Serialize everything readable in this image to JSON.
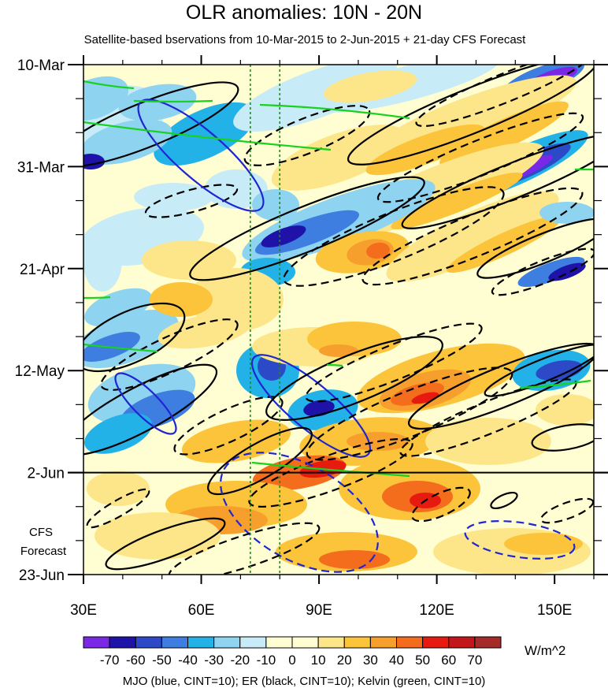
{
  "title": "OLR anomalies: 10N - 20N",
  "subtitle": "Satellite-based bservations from 10-Mar-2015 to 2-Jun-2015 + 21-day CFS Forecast",
  "forecast_label_1": "CFS",
  "forecast_label_2": "Forecast",
  "units": "W/m^2",
  "bottom_note": "MJO (blue, CINT=10); ER (black, CINT=10); Kelvin (green, CINT=10)",
  "colors": {
    "neg70": "#7a28e6",
    "neg60": "#1e12a8",
    "neg50": "#2c49c8",
    "neg40": "#3d7ee0",
    "neg30": "#23b2e8",
    "neg20": "#8ed3f0",
    "neg10": "#c8ecf7",
    "zero": "#fffed2",
    "pos10": "#fde68a",
    "pos20": "#fbc43a",
    "pos30": "#f79f2d",
    "pos40": "#f36d1d",
    "pos50": "#e71a10",
    "pos60": "#c2161a",
    "pos70": "#a52a2a",
    "pos80": "#ff6fc4",
    "mjo": "#1f26d0",
    "er": "#000000",
    "kelvin": "#19d11f",
    "ref": "#1e8a1e"
  },
  "chart_data": {
    "type": "heatmap",
    "title": "OLR anomalies: 10N - 20N",
    "x": {
      "range": [
        30,
        160
      ],
      "ticks": [
        30,
        60,
        90,
        120,
        150
      ],
      "tick_labels": [
        "30E",
        "60E",
        "90E",
        "120E",
        "150E"
      ]
    },
    "y": {
      "range_days": [
        0,
        105
      ],
      "ticks": [
        0,
        21,
        42,
        63,
        84,
        105
      ],
      "tick_labels": [
        "10-Mar",
        "31-Mar",
        "21-Apr",
        "12-May",
        "2-Jun",
        "23-Jun"
      ]
    },
    "forecast_start": "2-Jun",
    "reference_lines_lon": [
      72.5,
      80
    ],
    "colorbar": {
      "levels": [
        -70,
        -60,
        -50,
        -40,
        -30,
        -20,
        -10,
        0,
        10,
        20,
        30,
        40,
        50,
        60,
        70
      ],
      "labels": [
        "-70",
        "-60",
        "-50",
        "-40",
        "-30",
        "-20",
        "-10",
        "0",
        "10",
        "20",
        "30",
        "40",
        "50",
        "60",
        "70"
      ]
    },
    "overlays": [
      "MJO (blue, CINT=10)",
      "ER (black, CINT=10)",
      "Kelvin (green, CINT=10)"
    ]
  }
}
